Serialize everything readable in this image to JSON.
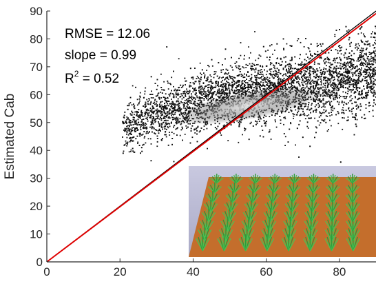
{
  "chart_data": {
    "type": "scatter",
    "title": "",
    "xlabel": "",
    "ylabel": "Estimated Cab",
    "xlim": [
      0,
      90
    ],
    "ylim": [
      0,
      90
    ],
    "x_ticks": [
      0,
      20,
      40,
      60,
      80
    ],
    "y_ticks": [
      0,
      10,
      20,
      30,
      40,
      50,
      60,
      70,
      80,
      90
    ],
    "grid": false,
    "annotations": {
      "rmse": "RMSE = 12.06",
      "slope": "slope = 0.99",
      "r2_prefix": "R",
      "r2_exp": "2",
      "r2_value": " = 0.52"
    },
    "point_cloud": {
      "x_range": [
        20,
        90
      ],
      "y_range": [
        28,
        85
      ],
      "core_x_range": [
        35,
        75
      ],
      "core_y": [
        52,
        60
      ],
      "density": "dense",
      "color": "#111111",
      "core_color": "#e8e8e8"
    },
    "lines": [
      {
        "kind": "one-to-one",
        "color": "#000000",
        "points": [
          [
            0,
            0
          ],
          [
            90,
            90
          ]
        ]
      },
      {
        "kind": "regression",
        "color": "#e00000",
        "slope": 0.99,
        "points": [
          [
            0,
            0
          ],
          [
            90,
            89.1
          ]
        ]
      }
    ],
    "inset": {
      "kind": "3D crop field rendering",
      "soil_color": "#c46e2c",
      "sky_color": "#bdbdd8",
      "plant_color": "#2f9a3a",
      "rows": 8,
      "plants_per_row": 8
    }
  }
}
